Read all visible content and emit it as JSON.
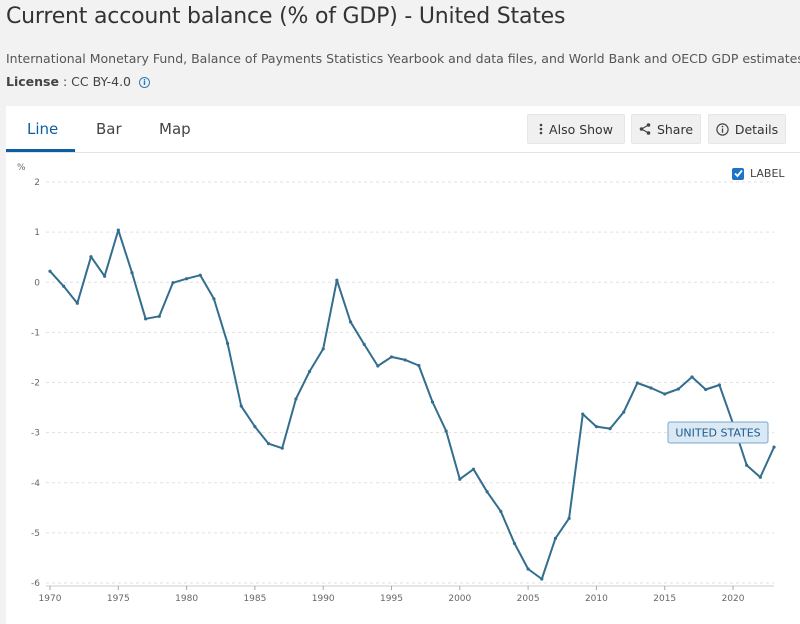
{
  "header": {
    "title": "Current account balance (% of GDP) - United States",
    "source": "International Monetary Fund, Balance of Payments Statistics Yearbook and data files, and World Bank and OECD GDP estimates.",
    "license_label": "License",
    "license_sep": " : ",
    "license_value": "CC BY-4.0"
  },
  "tabs": [
    {
      "label": "Line",
      "active": true
    },
    {
      "label": "Bar",
      "active": false
    },
    {
      "label": "Map",
      "active": false
    }
  ],
  "toolbar": {
    "also_show": "Also Show",
    "share": "Share",
    "details": "Details"
  },
  "label_toggle": {
    "text": "LABEL",
    "checked": true
  },
  "colors": {
    "line": "#336e8f",
    "accent": "#0b5fa5",
    "tooltip_bg": "#dbe9f5",
    "tooltip_border": "#7aa8cf"
  },
  "chart_data": {
    "type": "line",
    "ylabel": "%",
    "ylim": [
      -6,
      2
    ],
    "yticks": [
      2,
      1,
      0,
      -1,
      -2,
      -3,
      -4,
      -5,
      -6
    ],
    "xlim": [
      1970,
      2023
    ],
    "xticks": [
      1970,
      1975,
      1980,
      1985,
      1990,
      1995,
      2000,
      2005,
      2010,
      2015,
      2020
    ],
    "grid": true,
    "series": [
      {
        "name": "UNITED STATES",
        "x": [
          1970,
          1971,
          1972,
          1973,
          1974,
          1975,
          1976,
          1977,
          1978,
          1979,
          1980,
          1981,
          1982,
          1983,
          1984,
          1985,
          1986,
          1987,
          1988,
          1989,
          1990,
          1991,
          1992,
          1993,
          1994,
          1995,
          1996,
          1997,
          1998,
          1999,
          2000,
          2001,
          2002,
          2003,
          2004,
          2005,
          2006,
          2007,
          2008,
          2009,
          2010,
          2011,
          2012,
          2013,
          2014,
          2015,
          2016,
          2017,
          2018,
          2019,
          2020,
          2021,
          2022,
          2023
        ],
        "values": [
          0.22,
          -0.08,
          -0.42,
          0.51,
          0.12,
          1.04,
          0.19,
          -0.73,
          -0.68,
          -0.01,
          0.07,
          0.14,
          -0.33,
          -1.22,
          -2.47,
          -2.88,
          -3.22,
          -3.31,
          -2.33,
          -1.78,
          -1.33,
          0.04,
          -0.79,
          -1.24,
          -1.67,
          -1.49,
          -1.55,
          -1.66,
          -2.39,
          -2.97,
          -3.93,
          -3.73,
          -4.18,
          -4.57,
          -5.21,
          -5.72,
          -5.92,
          -5.11,
          -4.71,
          -2.63,
          -2.88,
          -2.92,
          -2.59,
          -2.01,
          -2.11,
          -2.23,
          -2.13,
          -1.89,
          -2.14,
          -2.05,
          -2.82,
          -3.65,
          -3.89,
          -3.29
        ]
      }
    ],
    "annotations": [
      {
        "text": "UNITED STATES",
        "series": "UNITED STATES"
      }
    ]
  }
}
